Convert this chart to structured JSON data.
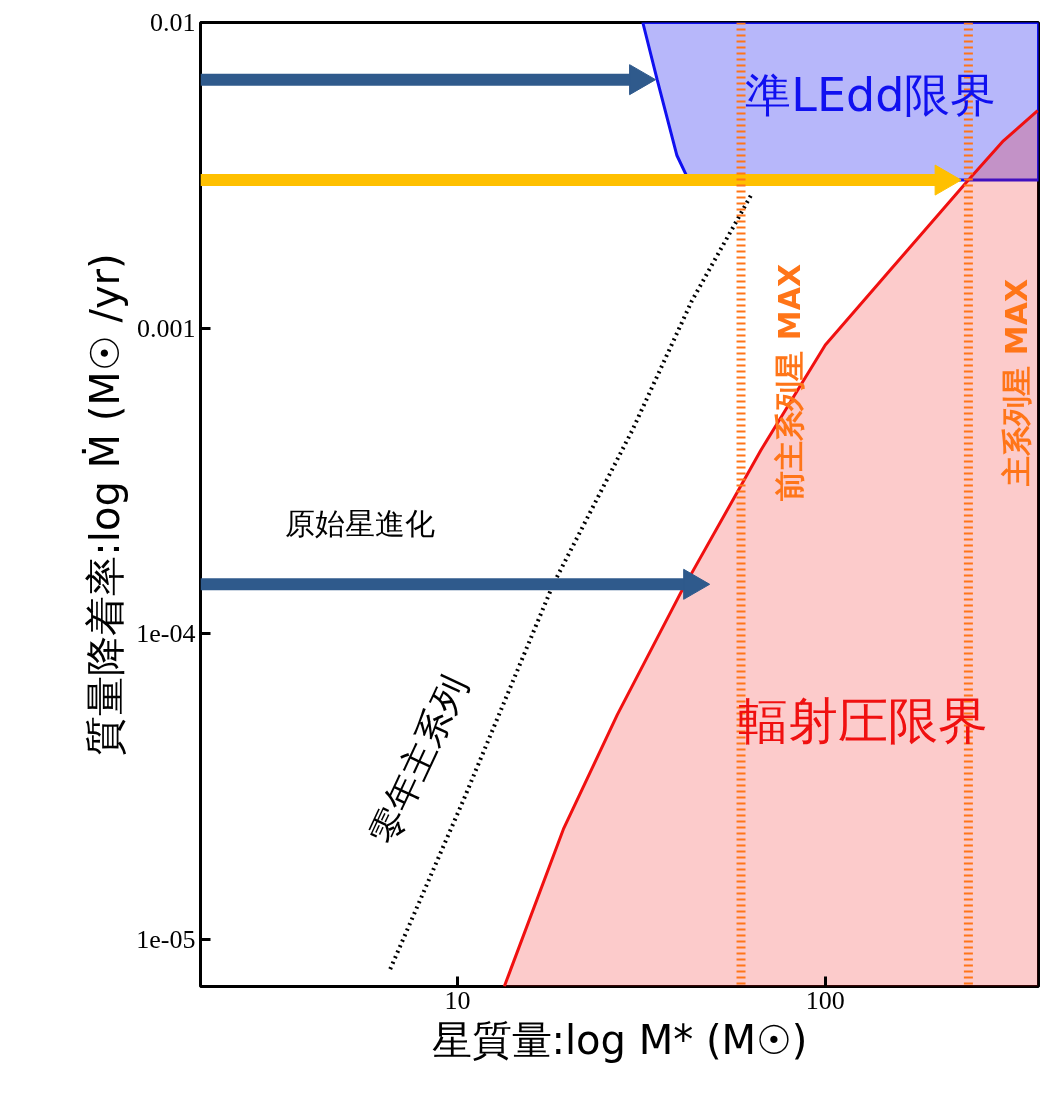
{
  "chart_data": {
    "type": "line",
    "xlabel": "星質量:log M* (M☉)",
    "ylabel": "質量降着率:log Ṁ (M☉ /yr)",
    "log": "xy",
    "xlim": [
      2,
      380
    ],
    "ylim": [
      7e-06,
      0.01
    ],
    "xticks": [
      10,
      100
    ],
    "yticks": [
      {
        "value": 0.01,
        "label": "0.01"
      },
      {
        "value": 0.001,
        "label": "0.001"
      },
      {
        "value": 0.0001,
        "label": "1e-04"
      },
      {
        "value": 1e-05,
        "label": "1e-05"
      }
    ],
    "grid": false,
    "series": [
      {
        "type": "area",
        "color": "#1010f0",
        "x": [
          31.9,
          34.9,
          39.5,
          42.5,
          380,
          380
        ],
        "values": [
          0.01,
          0.0065,
          0.00367,
          0.00305,
          0.00305,
          0.01
        ]
      },
      {
        "type": "area",
        "color": "#f01010",
        "x": [
          13.4,
          19.4,
          27.2,
          40.7,
          66.8,
          100,
          149.6,
          245,
          305,
          378
        ],
        "values": [
          7e-06,
          2.29e-05,
          5.43e-05,
          0.000138,
          0.000398,
          0.00088,
          0.00154,
          0.00305,
          0.0041,
          0.00515
        ]
      },
      {
        "color": "#000000",
        "line_style": "dotted",
        "x": [
          6.56,
          10.4,
          18.2,
          29.9,
          43.4,
          62.8
        ],
        "values": [
          7.98e-06,
          2.87e-05,
          0.000145,
          0.000464,
          0.00123,
          0.00272
        ]
      },
      {
        "color": "#2f5a8c",
        "marker": "triangle",
        "x": [
          2,
          43.5
        ],
        "values": [
          0.000145,
          0.000145
        ]
      },
      {
        "color": "#2f5a8c",
        "marker": "triangle",
        "x": [
          2,
          31
        ],
        "values": [
          0.0065,
          0.0065
        ]
      },
      {
        "color": "#ffc000",
        "marker": "triangle",
        "x": [
          2,
          210
        ],
        "values": [
          0.00305,
          0.00305
        ]
      }
    ],
    "ref_lines": [
      {
        "axis": "x",
        "value": 59,
        "label": "前主系列星 MAX",
        "color": "#ff7518",
        "line_style": "dotted"
      },
      {
        "axis": "x",
        "value": 245,
        "label": "主系列星 MAX",
        "color": "#ff7518",
        "line_style": "dotted"
      }
    ],
    "annotations": [
      "準LEdd限界",
      "輻射圧限界",
      "零年主系列",
      "原始星進化"
    ]
  }
}
